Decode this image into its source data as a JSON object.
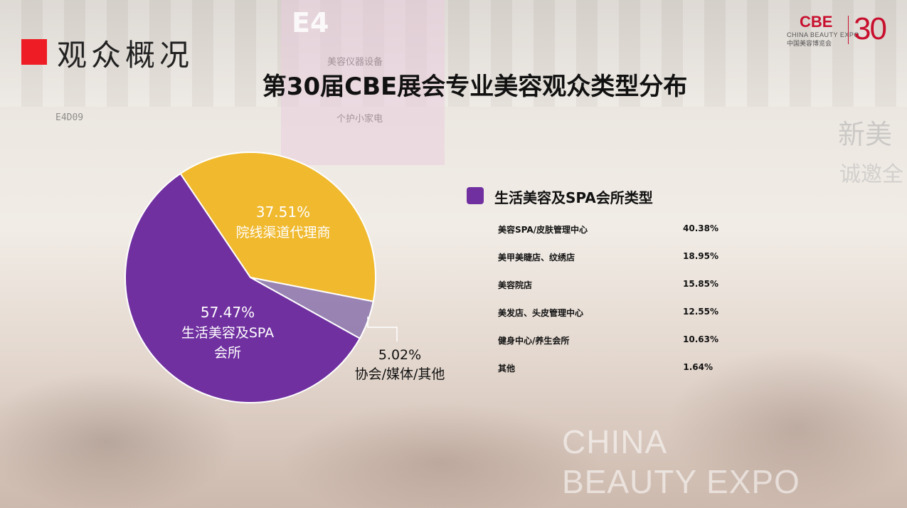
{
  "header": {
    "section_title": "观众概况",
    "main_title": "第30届CBE展会专业美容观众类型分布"
  },
  "logo": {
    "brand": "CBE",
    "subtitle_en": "CHINA BEAUTY EXPO",
    "subtitle_cn": "中国美容博览会",
    "anniversary": "30"
  },
  "background": {
    "booth_label": "E4",
    "booth_sign_1": "美容仪器设备",
    "booth_sign_2": "个护小家电",
    "booth_code": "E4D09",
    "side_text_1": "新美",
    "side_text_2": "诚邀全",
    "watermark_line_1": "CHINA",
    "watermark_line_2": "BEAUTY EXPO"
  },
  "chart_data": {
    "type": "pie",
    "title": "第30届CBE展会专业美容观众类型分布",
    "slices": [
      {
        "label": "院线渠道代理商",
        "percent_text": "37.51%",
        "value": 37.51,
        "color": "#f0b92e"
      },
      {
        "label": "协会/媒体/其他",
        "percent_text": "5.02%",
        "value": 5.02,
        "color": "#7e64a6"
      },
      {
        "label_line_1": "生活美容及SPA",
        "label_line_2": "会所",
        "percent_text": "57.47%",
        "value": 57.47,
        "color": "#7030a0"
      }
    ]
  },
  "breakdown": {
    "legend_title": "生活美容及SPA会所类型",
    "legend_color": "#7030a0",
    "rows": [
      {
        "label": "美容SPA/皮肤管理中心",
        "value": "40.38%"
      },
      {
        "label": "美甲美睫店、纹绣店",
        "value": "18.95%"
      },
      {
        "label": "美容院店",
        "value": "15.85%"
      },
      {
        "label": "美发店、头皮管理中心",
        "value": "12.55%"
      },
      {
        "label": "健身中心/养生会所",
        "value": "10.63%"
      },
      {
        "label": "其他",
        "value": "1.64%"
      }
    ]
  }
}
